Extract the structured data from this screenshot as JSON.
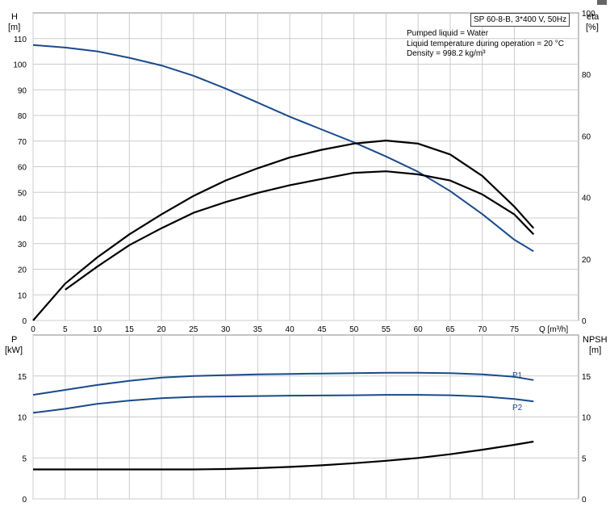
{
  "header": {
    "title": "SP 60-8-B, 3*400 V, 50Hz",
    "info": [
      "Pumped liquid = Water",
      "Liquid temperature during operation = 20 °C",
      "Density = 998.2 kg/m³"
    ]
  },
  "top_axes": {
    "left_label_1": "H",
    "left_label_2": "[m]",
    "right_label_1": "eta",
    "right_label_2": "[%]",
    "x_label": "Q [m³/h]"
  },
  "bottom_axes": {
    "left_label_1": "P",
    "left_label_2": "[kW]",
    "right_label_1": "NPSH",
    "right_label_2": "[m]"
  },
  "chart_data": [
    {
      "type": "line",
      "x_ticks": [
        0,
        5,
        10,
        15,
        20,
        25,
        30,
        35,
        40,
        45,
        50,
        55,
        60,
        65,
        70,
        75
      ],
      "xlim": [
        0,
        85
      ],
      "ylim_left": [
        0,
        120
      ],
      "ylim_right": [
        0,
        100
      ],
      "y_ticks_left": [
        0,
        10,
        20,
        30,
        40,
        50,
        60,
        70,
        80,
        90,
        100,
        110
      ],
      "y_ticks_right": [
        0,
        20,
        40,
        60,
        80,
        100
      ],
      "grid": true,
      "series": [
        {
          "name": "",
          "axis": "left",
          "color": "#1a4a8a",
          "x": [
            0,
            5,
            10,
            15,
            20,
            25,
            30,
            35,
            40,
            45,
            50,
            55,
            60,
            65,
            70,
            75,
            78
          ],
          "y": [
            107.5,
            106.5,
            105,
            102.5,
            99.5,
            95.5,
            90.5,
            85,
            79.5,
            74.5,
            69.5,
            64,
            58,
            50.5,
            41.5,
            31.5,
            27
          ]
        },
        {
          "name": "",
          "axis": "right",
          "color": "#000000",
          "x": [
            0,
            5,
            10,
            15,
            20,
            25,
            30,
            35,
            40,
            45,
            50,
            55,
            60,
            65,
            70,
            75,
            78
          ],
          "y": [
            0,
            12,
            20.5,
            28,
            34.5,
            40.5,
            45.5,
            49.5,
            53,
            55.5,
            57.5,
            58.5,
            57.5,
            54,
            47,
            37,
            30
          ]
        },
        {
          "name": "",
          "axis": "right",
          "color": "#000000",
          "x": [
            5,
            10,
            15,
            20,
            25,
            30,
            35,
            40,
            45,
            50,
            55,
            60,
            65,
            70,
            75,
            78
          ],
          "y": [
            10,
            17.5,
            24.5,
            30,
            35,
            38.5,
            41.5,
            44,
            46,
            48,
            48.5,
            47.5,
            45.5,
            41,
            34.5,
            28
          ]
        }
      ]
    },
    {
      "type": "line",
      "x_ticks": [
        0,
        5,
        10,
        15,
        20,
        25,
        30,
        35,
        40,
        45,
        50,
        55,
        60,
        65,
        70,
        75
      ],
      "xlim": [
        0,
        85
      ],
      "ylim_left": [
        0,
        20
      ],
      "ylim_right": [
        0,
        20
      ],
      "y_ticks_left": [
        0,
        5,
        10,
        15
      ],
      "y_ticks_right": [
        0,
        5,
        10,
        15
      ],
      "grid": true,
      "series": [
        {
          "name": "P1",
          "axis": "left",
          "color": "#1a4a8a",
          "x": [
            0,
            5,
            10,
            15,
            20,
            25,
            30,
            35,
            40,
            45,
            50,
            55,
            60,
            65,
            70,
            75,
            78
          ],
          "y": [
            12.7,
            13.3,
            13.9,
            14.4,
            14.8,
            15.0,
            15.1,
            15.2,
            15.25,
            15.3,
            15.35,
            15.4,
            15.4,
            15.35,
            15.2,
            14.9,
            14.5
          ]
        },
        {
          "name": "P2",
          "axis": "left",
          "color": "#1a4a8a",
          "x": [
            0,
            5,
            10,
            15,
            20,
            25,
            30,
            35,
            40,
            45,
            50,
            55,
            60,
            65,
            70,
            75,
            78
          ],
          "y": [
            10.5,
            11.0,
            11.6,
            12.0,
            12.3,
            12.45,
            12.5,
            12.55,
            12.6,
            12.62,
            12.65,
            12.7,
            12.7,
            12.65,
            12.5,
            12.2,
            11.9
          ]
        },
        {
          "name": "",
          "axis": "right",
          "color": "#000000",
          "x": [
            0,
            5,
            10,
            15,
            20,
            25,
            30,
            35,
            40,
            45,
            50,
            55,
            60,
            65,
            70,
            75,
            78
          ],
          "y": [
            3.6,
            3.6,
            3.6,
            3.6,
            3.6,
            3.6,
            3.65,
            3.75,
            3.9,
            4.1,
            4.35,
            4.65,
            5.0,
            5.45,
            6.0,
            6.6,
            7.0
          ]
        }
      ]
    }
  ]
}
